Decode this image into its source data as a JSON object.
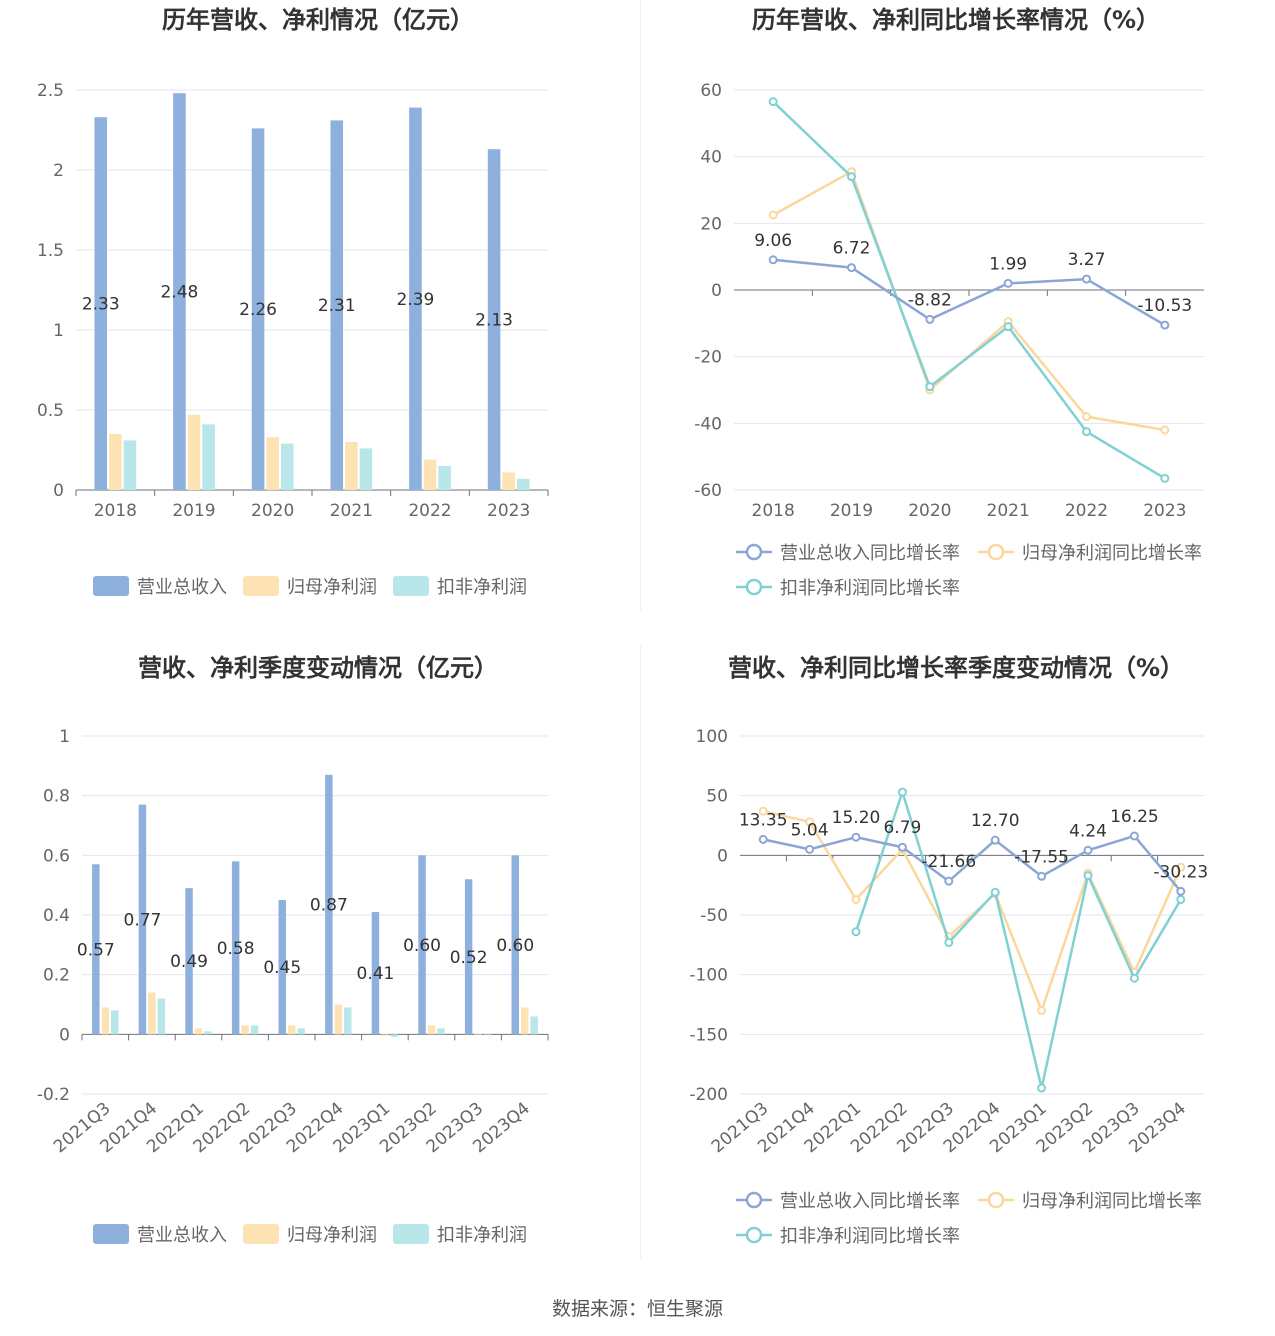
{
  "footer": {
    "source": "数据来源：恒生聚源"
  },
  "colors": {
    "revenue": "#8eb0dc",
    "net_profit": "#fde3b4",
    "deducted_profit": "#b9e6e8",
    "revenue_line": "#8ba6d6",
    "net_line": "#fcd79b",
    "deducted_line": "#7fd1d3"
  },
  "chart_data": [
    {
      "id": "annual-amounts",
      "type": "bar",
      "title": "历年营收、净利情况（亿元）",
      "categories": [
        "2018",
        "2019",
        "2020",
        "2021",
        "2022",
        "2023"
      ],
      "ylim": [
        0,
        2.5
      ],
      "yticks": [
        "0",
        "0.5",
        "1",
        "1.5",
        "2",
        "2.5"
      ],
      "series": [
        {
          "name": "营业总收入",
          "values": [
            2.33,
            2.48,
            2.26,
            2.31,
            2.39,
            2.13
          ],
          "labels": [
            "2.33",
            "2.48",
            "2.26",
            "2.31",
            "2.39",
            "2.13"
          ]
        },
        {
          "name": "归母净利润",
          "values": [
            0.35,
            0.47,
            0.33,
            0.3,
            0.19,
            0.11
          ]
        },
        {
          "name": "扣非净利润",
          "values": [
            0.31,
            0.41,
            0.29,
            0.26,
            0.15,
            0.07
          ]
        }
      ],
      "legend": "bottom"
    },
    {
      "id": "annual-growth",
      "type": "line",
      "title": "历年营收、净利同比增长率情况（%）",
      "categories": [
        "2018",
        "2019",
        "2020",
        "2021",
        "2022",
        "2023"
      ],
      "ylim": [
        -60,
        60
      ],
      "yticks": [
        "-60",
        "-40",
        "-20",
        "0",
        "20",
        "40",
        "60"
      ],
      "series": [
        {
          "name": "营业总收入同比增长率",
          "values": [
            9.06,
            6.72,
            -8.82,
            1.99,
            3.27,
            -10.53
          ],
          "labels": [
            "9.06",
            "6.72",
            "-8.82",
            "1.99",
            "3.27",
            "-10.53"
          ]
        },
        {
          "name": "归母净利润同比增长率",
          "values": [
            22.5,
            35.5,
            -30,
            -9.5,
            -38,
            -42
          ]
        },
        {
          "name": "扣非净利润同比增长率",
          "values": [
            56.5,
            34,
            -29,
            -11,
            -42.5,
            -56.5
          ]
        }
      ],
      "legend": "bottom"
    },
    {
      "id": "quarterly-amounts",
      "type": "bar",
      "title": "营收、净利季度变动情况（亿元）",
      "categories": [
        "2021Q3",
        "2021Q4",
        "2022Q1",
        "2022Q2",
        "2022Q3",
        "2022Q4",
        "2023Q1",
        "2023Q2",
        "2023Q3",
        "2023Q4"
      ],
      "ylim": [
        -0.2,
        1
      ],
      "yticks": [
        "-0.2",
        "0",
        "0.2",
        "0.4",
        "0.6",
        "0.8",
        "1"
      ],
      "series": [
        {
          "name": "营业总收入",
          "values": [
            0.57,
            0.77,
            0.49,
            0.58,
            0.45,
            0.87,
            0.41,
            0.6,
            0.52,
            0.6
          ],
          "labels": [
            "0.57",
            "0.77",
            "0.49",
            "0.58",
            "0.45",
            "0.87",
            "0.41",
            "0.60",
            "0.52",
            "0.60"
          ]
        },
        {
          "name": "归母净利润",
          "values": [
            0.09,
            0.14,
            0.02,
            0.03,
            0.03,
            0.1,
            -0.005,
            0.03,
            0.0,
            0.09
          ]
        },
        {
          "name": "扣非净利润",
          "values": [
            0.08,
            0.12,
            0.01,
            0.03,
            0.02,
            0.09,
            -0.008,
            0.02,
            -0.002,
            0.06
          ]
        }
      ],
      "legend": "bottom"
    },
    {
      "id": "quarterly-growth",
      "type": "line",
      "title": "营收、净利同比增长率季度变动情况（%）",
      "categories": [
        "2021Q3",
        "2021Q4",
        "2022Q1",
        "2022Q2",
        "2022Q3",
        "2022Q4",
        "2023Q1",
        "2023Q2",
        "2023Q3",
        "2023Q4"
      ],
      "ylim": [
        -200,
        100
      ],
      "yticks": [
        "-200",
        "-150",
        "-100",
        "-50",
        "0",
        "50",
        "100"
      ],
      "series": [
        {
          "name": "营业总收入同比增长率",
          "values": [
            13.35,
            5.04,
            15.2,
            6.79,
            -21.66,
            12.7,
            -17.55,
            4.24,
            16.25,
            -30.23
          ],
          "labels": [
            "13.35",
            "5.04",
            "15.20",
            "6.79",
            "-21.66",
            "12.70",
            "-17.55",
            "4.24",
            "16.25",
            "-30.23"
          ]
        },
        {
          "name": "归母净利润同比增长率",
          "values": [
            37,
            28,
            -37,
            5,
            -68,
            -32,
            -130,
            -15,
            -98,
            -10
          ]
        },
        {
          "name": "扣非净利润同比增长率",
          "values": [
            null,
            null,
            -64,
            53,
            -73,
            -31,
            -195,
            -17,
            -103,
            -37
          ]
        }
      ],
      "legend": "bottom"
    }
  ]
}
